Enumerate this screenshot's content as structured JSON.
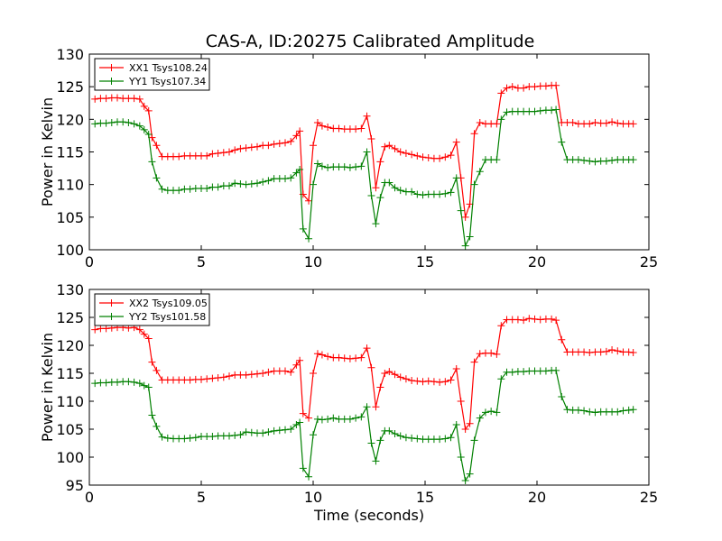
{
  "chart_data": [
    {
      "type": "line",
      "title": "CAS-A, ID:20275 Calibrated Amplitude",
      "xlabel": "",
      "ylabel": "Power in Kelvin",
      "xlim": [
        0,
        25
      ],
      "ylim": [
        100,
        130
      ],
      "xticks": [
        0,
        5,
        10,
        15,
        20,
        25
      ],
      "yticks": [
        100,
        105,
        110,
        115,
        120,
        125,
        130
      ],
      "grid": false,
      "legend": "top-left",
      "x": [
        0.25,
        0.5,
        0.75,
        1.0,
        1.25,
        1.5,
        1.75,
        2.0,
        2.25,
        2.45,
        2.65,
        2.8,
        3.0,
        3.25,
        3.5,
        3.75,
        4.0,
        4.25,
        4.5,
        4.75,
        5.0,
        5.25,
        5.5,
        5.75,
        6.0,
        6.25,
        6.5,
        6.75,
        7.0,
        7.25,
        7.5,
        7.75,
        8.0,
        8.25,
        8.5,
        8.75,
        9.0,
        9.25,
        9.4,
        9.55,
        9.8,
        10.0,
        10.2,
        10.4,
        10.65,
        10.9,
        11.15,
        11.4,
        11.65,
        11.9,
        12.15,
        12.4,
        12.6,
        12.8,
        13.0,
        13.2,
        13.4,
        13.65,
        13.9,
        14.15,
        14.4,
        14.65,
        14.9,
        15.15,
        15.4,
        15.65,
        15.9,
        16.15,
        16.4,
        16.6,
        16.8,
        17.0,
        17.2,
        17.45,
        17.7,
        17.95,
        18.2,
        18.4,
        18.65,
        18.9,
        19.15,
        19.4,
        19.65,
        19.9,
        20.15,
        20.4,
        20.65,
        20.85,
        21.1,
        21.35,
        21.6,
        21.85,
        22.1,
        22.35,
        22.6,
        22.85,
        23.1,
        23.35,
        23.6,
        23.85,
        24.1,
        24.3
      ],
      "series": [
        {
          "name": "XX1 Tsys108.24",
          "color": "#ff0000",
          "values": [
            123.1,
            123.2,
            123.2,
            123.3,
            123.3,
            123.2,
            123.2,
            123.2,
            123.1,
            122.0,
            121.3,
            117.2,
            116.0,
            114.3,
            114.3,
            114.3,
            114.3,
            114.4,
            114.4,
            114.4,
            114.4,
            114.4,
            114.7,
            114.8,
            114.9,
            115.0,
            115.3,
            115.5,
            115.6,
            115.7,
            115.8,
            116.0,
            116.0,
            116.2,
            116.3,
            116.4,
            116.6,
            117.5,
            118.2,
            108.5,
            107.5,
            116.0,
            119.5,
            119.0,
            118.8,
            118.6,
            118.6,
            118.5,
            118.5,
            118.5,
            118.6,
            120.5,
            117.0,
            109.5,
            113.5,
            115.8,
            116.0,
            115.5,
            115.0,
            114.8,
            114.6,
            114.4,
            114.2,
            114.1,
            114.0,
            114.0,
            114.2,
            114.5,
            116.5,
            111.0,
            105.0,
            107.0,
            117.8,
            119.5,
            119.3,
            119.3,
            119.3,
            124.0,
            124.8,
            125.0,
            124.8,
            124.8,
            125.0,
            125.0,
            125.1,
            125.1,
            125.2,
            125.2,
            119.5,
            119.5,
            119.5,
            119.3,
            119.3,
            119.3,
            119.5,
            119.4,
            119.4,
            119.6,
            119.4,
            119.3,
            119.3,
            119.3
          ]
        },
        {
          "name": "YY1 Tsys107.34",
          "color": "#008000",
          "values": [
            119.3,
            119.4,
            119.4,
            119.5,
            119.6,
            119.6,
            119.5,
            119.3,
            119.0,
            118.4,
            117.7,
            113.5,
            111.0,
            109.3,
            109.1,
            109.1,
            109.1,
            109.3,
            109.3,
            109.4,
            109.4,
            109.4,
            109.6,
            109.6,
            109.8,
            109.8,
            110.2,
            110.1,
            110.0,
            110.1,
            110.2,
            110.4,
            110.6,
            110.9,
            110.9,
            110.9,
            111.0,
            111.8,
            112.3,
            103.2,
            101.7,
            110.0,
            113.2,
            112.8,
            112.6,
            112.7,
            112.7,
            112.7,
            112.6,
            112.7,
            112.8,
            115.0,
            108.3,
            104.0,
            108.0,
            110.3,
            110.3,
            109.5,
            109.1,
            108.9,
            108.9,
            108.5,
            108.4,
            108.5,
            108.5,
            108.5,
            108.6,
            108.8,
            111.0,
            106.0,
            100.6,
            102.0,
            110.0,
            112.0,
            113.8,
            113.8,
            113.8,
            120.0,
            121.1,
            121.2,
            121.2,
            121.2,
            121.2,
            121.2,
            121.3,
            121.4,
            121.4,
            121.5,
            116.5,
            113.8,
            113.8,
            113.8,
            113.7,
            113.6,
            113.5,
            113.6,
            113.6,
            113.7,
            113.8,
            113.8,
            113.8,
            113.8
          ]
        }
      ]
    },
    {
      "type": "line",
      "title": "",
      "xlabel": "Time (seconds)",
      "ylabel": "Power in Kelvin",
      "xlim": [
        0,
        25
      ],
      "ylim": [
        95,
        130
      ],
      "xticks": [
        0,
        5,
        10,
        15,
        20,
        25
      ],
      "yticks": [
        95,
        100,
        105,
        110,
        115,
        120,
        125,
        130
      ],
      "grid": false,
      "legend": "top-left",
      "x": [
        0.25,
        0.5,
        0.75,
        1.0,
        1.25,
        1.5,
        1.75,
        2.0,
        2.25,
        2.45,
        2.65,
        2.8,
        3.0,
        3.25,
        3.5,
        3.75,
        4.0,
        4.25,
        4.5,
        4.75,
        5.0,
        5.25,
        5.5,
        5.75,
        6.0,
        6.25,
        6.5,
        6.75,
        7.0,
        7.25,
        7.5,
        7.75,
        8.0,
        8.25,
        8.5,
        8.75,
        9.0,
        9.25,
        9.4,
        9.55,
        9.8,
        10.0,
        10.2,
        10.4,
        10.65,
        10.9,
        11.15,
        11.4,
        11.65,
        11.9,
        12.15,
        12.4,
        12.6,
        12.8,
        13.0,
        13.2,
        13.4,
        13.65,
        13.9,
        14.15,
        14.4,
        14.65,
        14.9,
        15.15,
        15.4,
        15.65,
        15.9,
        16.15,
        16.4,
        16.6,
        16.8,
        17.0,
        17.2,
        17.45,
        17.7,
        17.95,
        18.2,
        18.4,
        18.65,
        18.9,
        19.15,
        19.4,
        19.65,
        19.9,
        20.15,
        20.4,
        20.65,
        20.85,
        21.1,
        21.35,
        21.6,
        21.85,
        22.1,
        22.35,
        22.6,
        22.85,
        23.1,
        23.35,
        23.6,
        23.85,
        24.1,
        24.3
      ],
      "series": [
        {
          "name": "XX2 Tsys109.05",
          "color": "#ff0000",
          "values": [
            122.8,
            123.0,
            123.0,
            123.1,
            123.2,
            123.2,
            123.1,
            123.2,
            122.8,
            122.0,
            121.2,
            117.0,
            115.5,
            113.8,
            113.8,
            113.8,
            113.8,
            113.8,
            113.8,
            113.9,
            113.9,
            114.0,
            114.1,
            114.2,
            114.3,
            114.5,
            114.7,
            114.7,
            114.7,
            114.8,
            114.9,
            115.0,
            115.2,
            115.4,
            115.4,
            115.4,
            115.2,
            116.5,
            117.3,
            107.8,
            107.0,
            115.0,
            118.5,
            118.3,
            118.0,
            117.8,
            117.8,
            117.7,
            117.6,
            117.7,
            117.8,
            119.5,
            116.0,
            109.0,
            112.5,
            115.0,
            115.3,
            114.8,
            114.3,
            114.0,
            113.7,
            113.6,
            113.5,
            113.6,
            113.5,
            113.4,
            113.5,
            113.8,
            115.8,
            110.0,
            105.0,
            106.0,
            117.0,
            118.5,
            118.6,
            118.6,
            118.4,
            123.5,
            124.6,
            124.6,
            124.6,
            124.5,
            124.8,
            124.7,
            124.6,
            124.7,
            124.7,
            124.5,
            121.0,
            118.8,
            118.8,
            118.8,
            118.8,
            118.7,
            118.8,
            118.8,
            118.9,
            119.2,
            119.0,
            118.8,
            118.8,
            118.7
          ]
        },
        {
          "name": "YY2 Tsys101.58",
          "color": "#008000",
          "values": [
            113.2,
            113.3,
            113.3,
            113.4,
            113.4,
            113.5,
            113.5,
            113.4,
            113.2,
            112.8,
            112.5,
            107.5,
            105.5,
            103.6,
            103.4,
            103.3,
            103.3,
            103.3,
            103.4,
            103.5,
            103.7,
            103.7,
            103.7,
            103.8,
            103.8,
            103.8,
            103.9,
            104.0,
            104.5,
            104.4,
            104.3,
            104.3,
            104.5,
            104.7,
            104.8,
            104.9,
            105.0,
            105.8,
            106.2,
            98.0,
            96.5,
            104.0,
            106.8,
            106.7,
            106.8,
            107.0,
            106.8,
            106.8,
            106.8,
            107.0,
            107.2,
            109.0,
            102.5,
            99.3,
            103.0,
            104.7,
            104.7,
            104.2,
            103.8,
            103.5,
            103.4,
            103.3,
            103.2,
            103.2,
            103.2,
            103.2,
            103.3,
            103.5,
            105.8,
            100.0,
            95.8,
            97.0,
            103.0,
            107.0,
            108.0,
            108.2,
            108.0,
            114.0,
            115.2,
            115.2,
            115.3,
            115.3,
            115.4,
            115.4,
            115.4,
            115.4,
            115.5,
            115.5,
            110.8,
            108.5,
            108.4,
            108.4,
            108.3,
            108.1,
            108.0,
            108.1,
            108.1,
            108.1,
            108.1,
            108.3,
            108.4,
            108.5
          ]
        }
      ]
    }
  ]
}
